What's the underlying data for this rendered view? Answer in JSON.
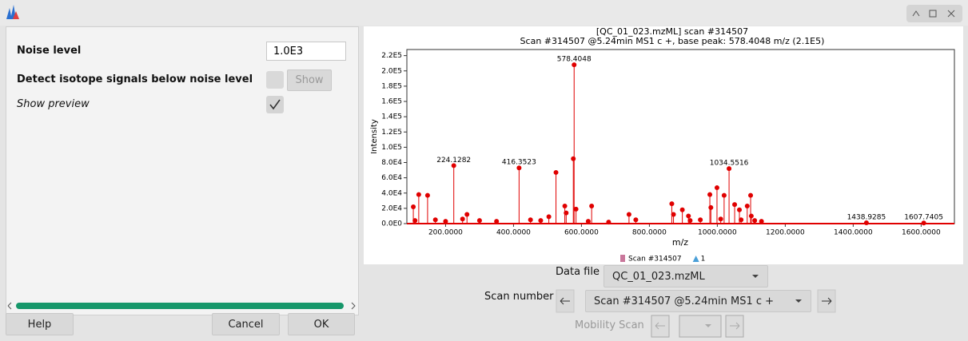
{
  "dialog": {
    "noise_label": "Noise level",
    "noise_value": "1.0E3",
    "isotope_label": "Detect isotope signals below noise level",
    "show_button": "Show",
    "preview_label": "Show preview",
    "help_button": "Help",
    "cancel_button": "Cancel",
    "ok_button": "OK"
  },
  "controls": {
    "data_file_label": "Data file",
    "data_file": "QC_01_023.mzML",
    "scan_number_label": "Scan number",
    "scan_number": "Scan #314507 @5.24min MS1 c +",
    "mobility_scan_label": "Mobility Scan"
  },
  "chart_data": {
    "type": "stem",
    "title": "[QC_01_023.mzML] scan #314507",
    "subtitle": "Scan #314507 @5.24min MS1 c +, base peak: 578.4048 m/z (2.1E5)",
    "x_label": "m/z",
    "y_label": "Intensity",
    "xlim": [
      86,
      1698
    ],
    "ylim": [
      0,
      228000
    ],
    "xticks": [
      {
        "value": 200,
        "label": "200.0000"
      },
      {
        "value": 400,
        "label": "400.0000"
      },
      {
        "value": 600,
        "label": "600.0000"
      },
      {
        "value": 800,
        "label": "800.0000"
      },
      {
        "value": 1000,
        "label": "1000.0000"
      },
      {
        "value": 1200,
        "label": "1200.0000"
      },
      {
        "value": 1400,
        "label": "1400.0000"
      },
      {
        "value": 1600,
        "label": "1600.0000"
      }
    ],
    "yticks": [
      {
        "value": 0,
        "label": "0.0E0"
      },
      {
        "value": 20000,
        "label": "2.0E4"
      },
      {
        "value": 40000,
        "label": "4.0E4"
      },
      {
        "value": 60000,
        "label": "6.0E4"
      },
      {
        "value": 80000,
        "label": "8.0E4"
      },
      {
        "value": 100000,
        "label": "1.0E5"
      },
      {
        "value": 120000,
        "label": "1.2E5"
      },
      {
        "value": 140000,
        "label": "1.4E5"
      },
      {
        "value": 160000,
        "label": "1.6E5"
      },
      {
        "value": 180000,
        "label": "1.8E5"
      },
      {
        "value": 200000,
        "label": "2.0E5"
      },
      {
        "value": 220000,
        "label": "2.2E5"
      }
    ],
    "grid": false,
    "series": [
      {
        "name": "Scan #314507",
        "color": "#e00000",
        "legend_color": "#c9779b",
        "x": [
          105,
          110,
          121,
          147,
          170,
          200,
          224.1282,
          250,
          263,
          300,
          350,
          416.3523,
          450,
          480,
          504,
          525,
          551,
          555,
          576,
          578.4048,
          584,
          620,
          630,
          680,
          740,
          760,
          866,
          871,
          897,
          915,
          920,
          950,
          978,
          981,
          999,
          1010,
          1020,
          1034.5516,
          1051,
          1065,
          1070,
          1088,
          1098,
          1100,
          1110,
          1130,
          1438.9285,
          1607.7405
        ],
        "values": [
          22000,
          4000,
          38000,
          37000,
          5000,
          3000,
          76000,
          6000,
          12000,
          4000,
          3000,
          73000,
          5000,
          4000,
          9000,
          67000,
          23000,
          14000,
          85000,
          208000,
          19000,
          3000,
          23000,
          2000,
          12000,
          5000,
          26000,
          12000,
          18000,
          10000,
          4000,
          5000,
          38000,
          21000,
          47000,
          6000,
          37000,
          72000,
          25000,
          18000,
          5000,
          23000,
          37000,
          10000,
          4000,
          3000,
          1000,
          800
        ],
        "point_labels": [
          null,
          null,
          null,
          null,
          null,
          null,
          "224.1282",
          null,
          null,
          null,
          null,
          "416.3523",
          null,
          null,
          null,
          null,
          null,
          null,
          null,
          "578.4048",
          null,
          null,
          null,
          null,
          null,
          null,
          null,
          null,
          null,
          null,
          null,
          null,
          null,
          null,
          null,
          null,
          null,
          "1034.5516",
          null,
          null,
          null,
          null,
          null,
          null,
          null,
          null,
          "1438.9285",
          "1607.7405"
        ]
      },
      {
        "name": "1",
        "color": "#4a9fd8",
        "x": [],
        "values": []
      }
    ]
  }
}
